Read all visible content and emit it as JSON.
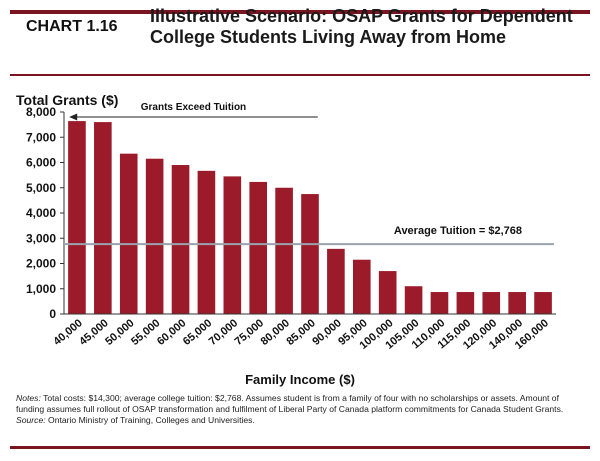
{
  "header": {
    "chart_number": "CHART 1.16",
    "title_line1": "Illustrative Scenario: OSAP Grants for Dependent",
    "title_line2": "College Students Living Away from Home"
  },
  "chart_data": {
    "type": "bar",
    "title": "Illustrative Scenario: OSAP Grants for Dependent College Students Living Away from Home",
    "ylabel": "Total Grants ($)",
    "xlabel": "Family Income ($)",
    "ylim": [
      0,
      8000
    ],
    "yticks": [
      0,
      1000,
      2000,
      3000,
      4000,
      5000,
      6000,
      7000,
      8000
    ],
    "ytick_labels": [
      "0",
      "1,000",
      "2,000",
      "3,000",
      "4,000",
      "5,000",
      "6,000",
      "7,000",
      "8,000"
    ],
    "grid": false,
    "categories": [
      "40,000",
      "45,000",
      "50,000",
      "55,000",
      "60,000",
      "65,000",
      "70,000",
      "75,000",
      "80,000",
      "85,000",
      "90,000",
      "95,000",
      "100,000",
      "105,000",
      "110,000",
      "115,000",
      "120,000",
      "140,000",
      "160,000"
    ],
    "values": [
      7640,
      7600,
      6350,
      6150,
      5900,
      5670,
      5450,
      5230,
      5000,
      4750,
      2580,
      2150,
      1700,
      1100,
      870,
      870,
      870,
      870,
      870
    ],
    "bar_color": "#9b1b2a",
    "reference_line": {
      "value": 2768,
      "label": "Average Tuition = $2,768",
      "color": "#9aa3ad"
    },
    "annotation": {
      "text": "Grants Exceed Tuition",
      "arrow_from_category": "85,000",
      "arrow_to_category": "40,000",
      "direction": "left"
    }
  },
  "notes": {
    "notes_label": "Notes:",
    "notes_text": " Total costs: $14,300; average college tuition: $2,768. Assumes student is from a family of four with no scholarships or assets. Amount of funding assumes full rollout of OSAP transformation and fulfilment of Liberal Party of Canada platform commitments for Canada Student Grants.",
    "source_label": "Source:",
    "source_text": " Ontario Ministry of Training, Colleges and Universities."
  }
}
